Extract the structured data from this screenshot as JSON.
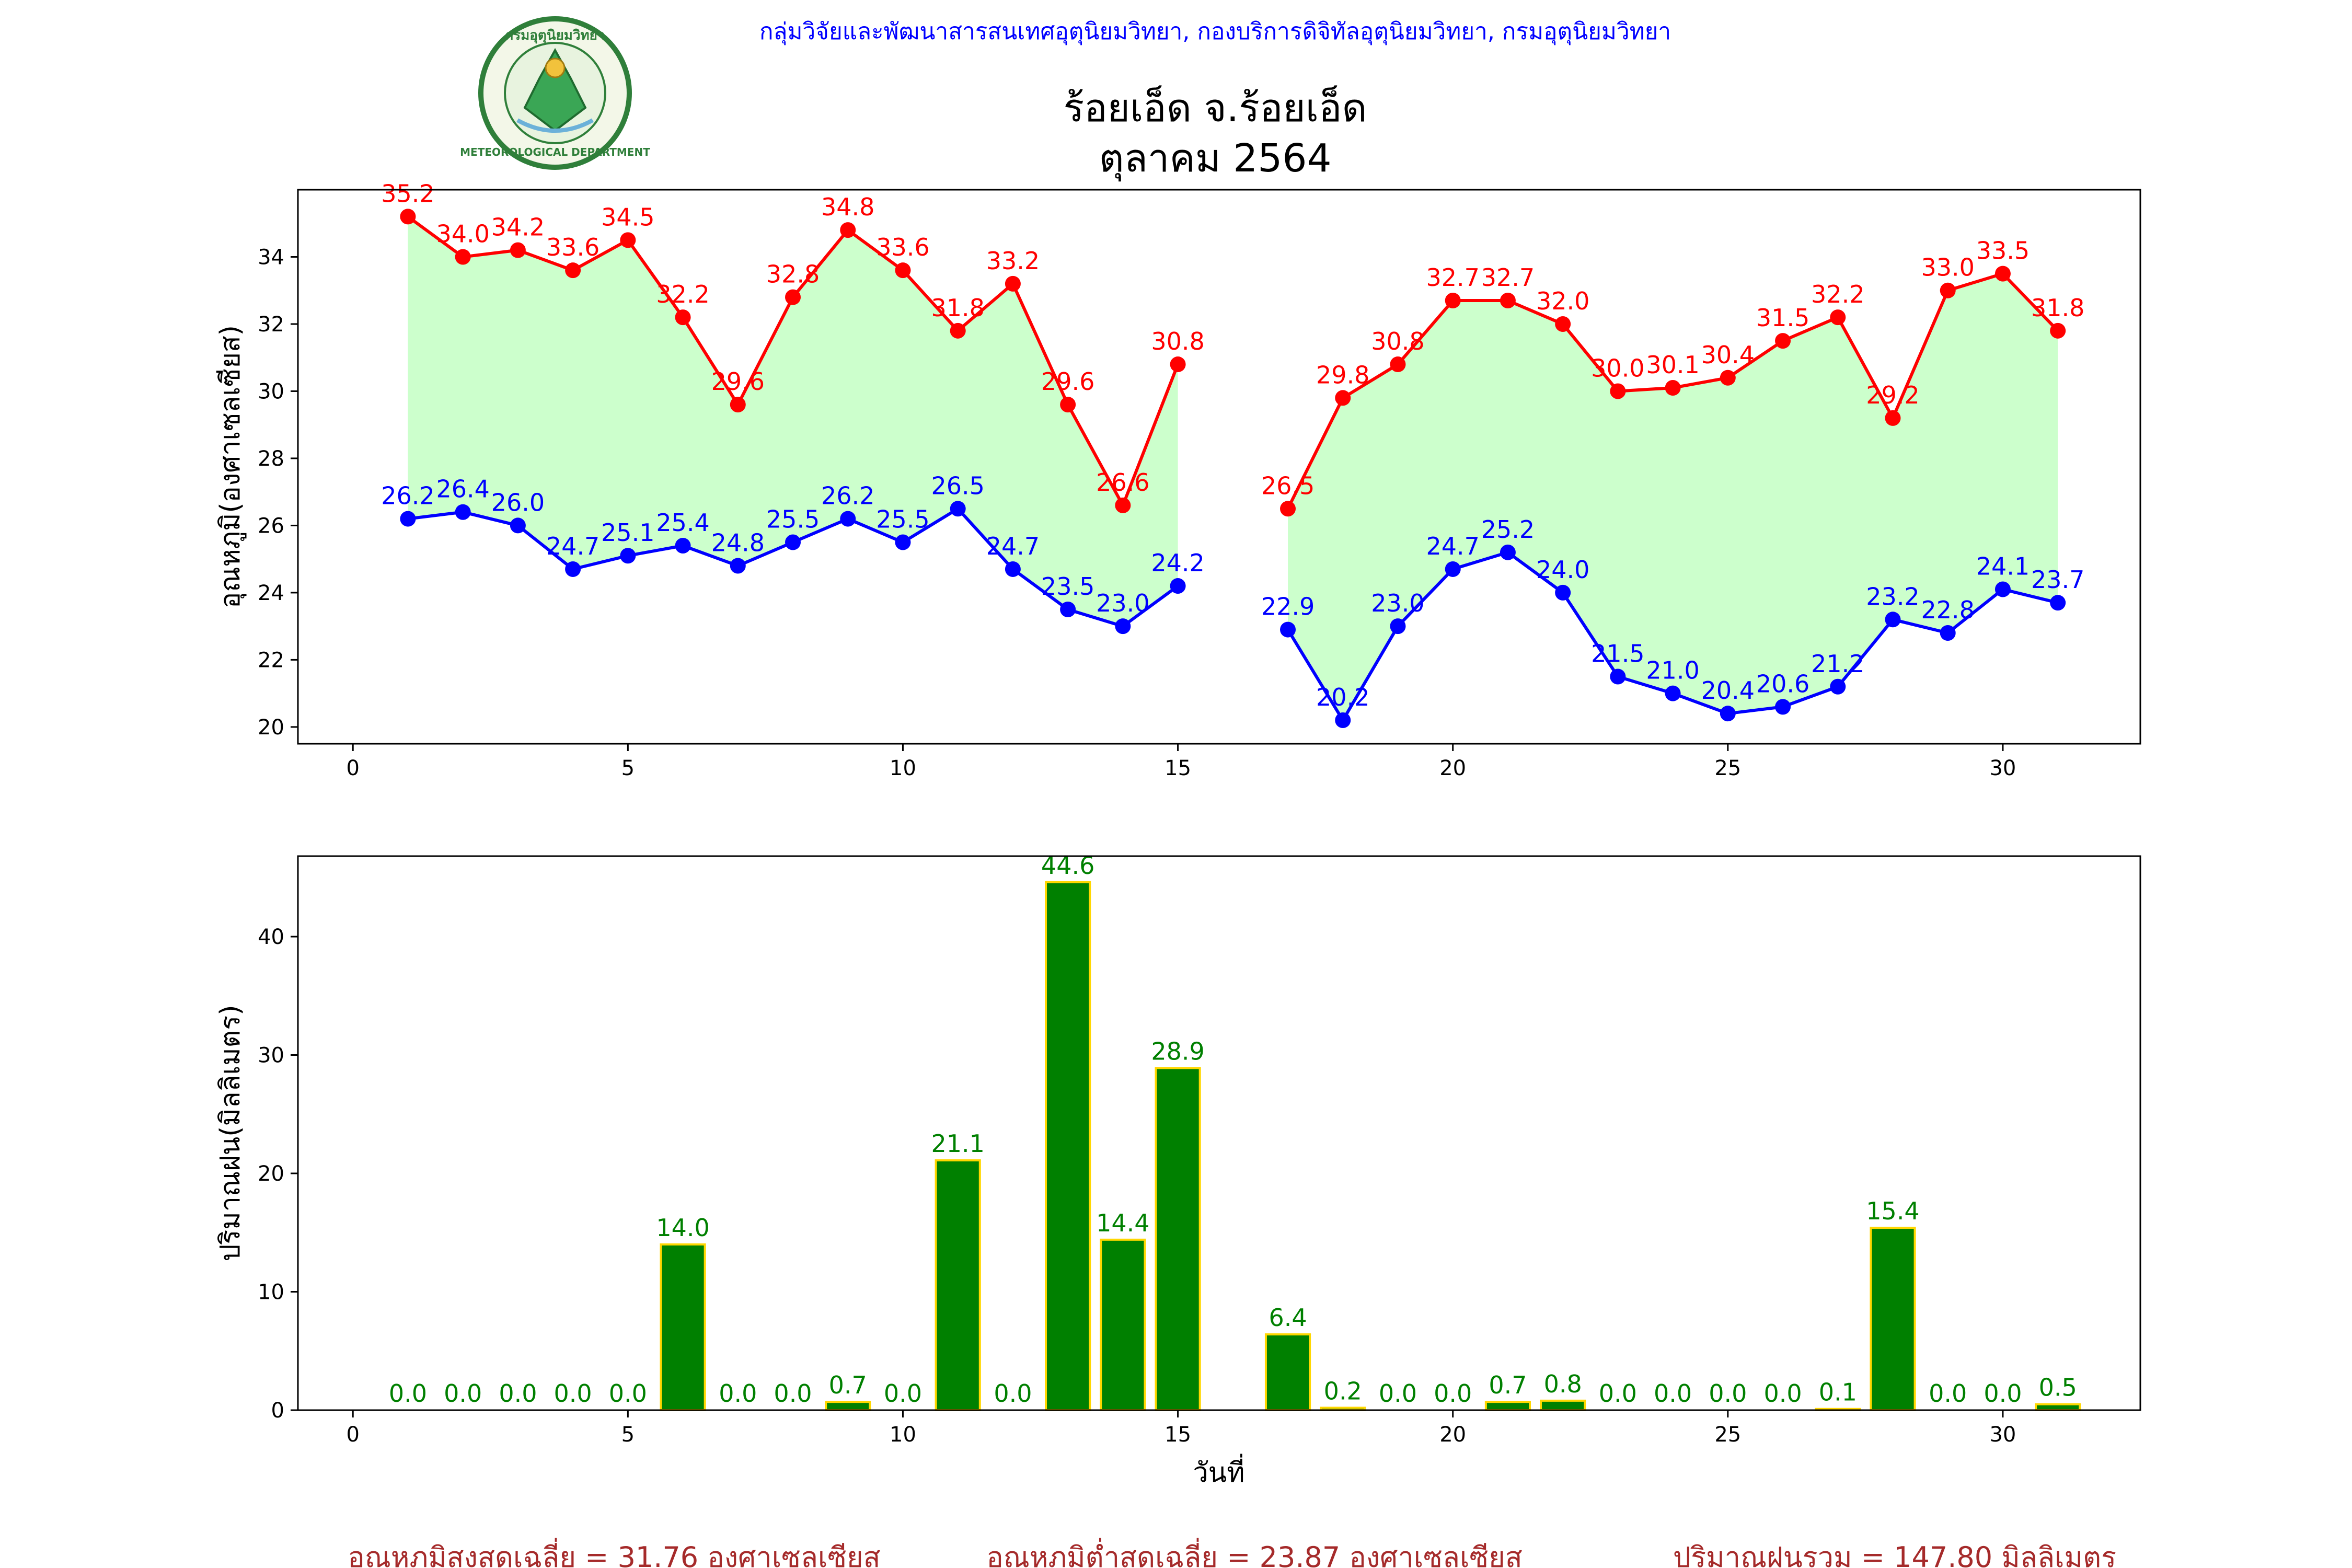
{
  "header": {
    "organization": "กลุ่มวิจัยและพัฒนาสารสนเทศอุตุนิยมวิทยา, กองบริการดิจิทัลอุตุนิยมวิทยา, กรมอุตุนิยมวิทยา",
    "title_line1": "ร้อยเอ็ด จ.ร้อยเอ็ด",
    "title_line2": "ตุลาคม 2564",
    "logo_text_top": "กรมอุตุนิยมวิทยา",
    "logo_text_bottom": "METEOROLOGICAL DEPARTMENT"
  },
  "colors": {
    "max_line": "#ff0000",
    "min_line": "#0000ff",
    "fill": "#ccffcc",
    "bar": "#008000",
    "bar_edge": "#ffd700",
    "bar_label": "#008000",
    "org_text": "#0000ff",
    "footer_text": "#a52a2a"
  },
  "chart_data": [
    {
      "type": "line",
      "ylabel": "อุณหภูมิ(องศาเซลเซียส)",
      "xlabel": "",
      "xlim": [
        -1,
        32.5
      ],
      "ylim": [
        19.5,
        36.0
      ],
      "xticks": [
        0,
        5,
        10,
        15,
        20,
        25,
        30
      ],
      "yticks": [
        20,
        22,
        24,
        26,
        28,
        30,
        32,
        34
      ],
      "x": [
        1,
        2,
        3,
        4,
        5,
        6,
        7,
        8,
        9,
        10,
        11,
        12,
        13,
        14,
        15,
        17,
        18,
        19,
        20,
        21,
        22,
        23,
        24,
        25,
        26,
        27,
        28,
        29,
        30,
        31
      ],
      "segments": [
        [
          0,
          14
        ],
        [
          15,
          29
        ]
      ],
      "series": [
        {
          "key": "max",
          "values": [
            35.2,
            34.0,
            34.2,
            33.6,
            34.5,
            32.2,
            29.6,
            32.8,
            34.8,
            33.6,
            31.8,
            33.2,
            29.6,
            26.6,
            30.8,
            26.5,
            29.8,
            30.8,
            32.7,
            32.7,
            32.0,
            30.0,
            30.1,
            30.4,
            31.5,
            32.2,
            29.2,
            33.0,
            33.5,
            31.8
          ]
        },
        {
          "key": "min",
          "values": [
            26.2,
            26.4,
            26.0,
            24.7,
            25.1,
            25.4,
            24.8,
            25.5,
            26.2,
            25.5,
            26.5,
            24.7,
            23.5,
            23.0,
            24.2,
            22.9,
            20.2,
            23.0,
            24.7,
            25.2,
            24.0,
            21.5,
            21.0,
            20.4,
            20.6,
            21.2,
            23.2,
            22.8,
            24.1,
            23.7
          ]
        }
      ]
    },
    {
      "type": "bar",
      "ylabel": "ปริมาณฝน(มิลลิเมตร)",
      "xlabel": "วันที่",
      "xlim": [
        -1,
        32.5
      ],
      "ylim": [
        0,
        46.8
      ],
      "xticks": [
        0,
        5,
        10,
        15,
        20,
        25,
        30
      ],
      "yticks": [
        0,
        10,
        20,
        30,
        40
      ],
      "x": [
        1,
        2,
        3,
        4,
        5,
        6,
        7,
        8,
        9,
        10,
        11,
        12,
        13,
        14,
        15,
        17,
        18,
        19,
        20,
        21,
        22,
        23,
        24,
        25,
        26,
        27,
        28,
        29,
        30,
        31
      ],
      "values": [
        0.0,
        0.0,
        0.0,
        0.0,
        0.0,
        14.0,
        0.0,
        0.0,
        0.7,
        0.0,
        21.1,
        0.0,
        44.6,
        14.4,
        28.9,
        6.4,
        0.2,
        0.0,
        0.0,
        0.7,
        0.8,
        0.0,
        0.0,
        0.0,
        0.0,
        0.1,
        15.4,
        0.0,
        0.0,
        0.5
      ],
      "bar_width": 0.8
    }
  ],
  "footer": {
    "avg_max": "อุณหภูมิสูงสุดเฉลี่ย = 31.76 องศาเซลเซียส",
    "avg_min": "อุณหภูมิต่ำสุดเฉลี่ย = 23.87 องศาเซลเซียส",
    "total_rain": "ปริมาณฝนรวม = 147.80 มิลลิเมตร"
  }
}
